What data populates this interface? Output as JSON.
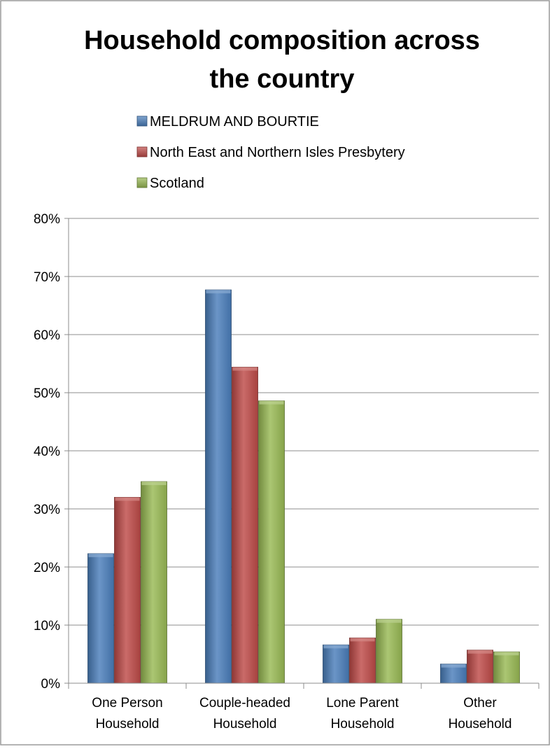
{
  "chart_data": {
    "type": "bar",
    "title_lines": [
      "Household composition across",
      "the country"
    ],
    "categories": [
      [
        "One Person",
        "Household"
      ],
      [
        "Couple-headed",
        "Household"
      ],
      [
        "Lone Parent",
        "Household"
      ],
      [
        "Other",
        "Household"
      ]
    ],
    "series": [
      {
        "name": "MELDRUM AND BOURTIE",
        "color": "#4a7ebb",
        "values": [
          22.3,
          67.7,
          6.6,
          3.3
        ]
      },
      {
        "name": "North East and Northern Isles Presbytery",
        "color": "#be4b48",
        "values": [
          32.0,
          54.4,
          7.8,
          5.7
        ]
      },
      {
        "name": "Scotland",
        "color": "#98b954",
        "values": [
          34.7,
          48.6,
          11.0,
          5.4
        ]
      }
    ],
    "y_ticks": [
      "0%",
      "10%",
      "20%",
      "30%",
      "40%",
      "50%",
      "60%",
      "70%",
      "80%"
    ],
    "ylim": [
      0,
      80
    ],
    "grid": true,
    "legend_position": "top"
  }
}
